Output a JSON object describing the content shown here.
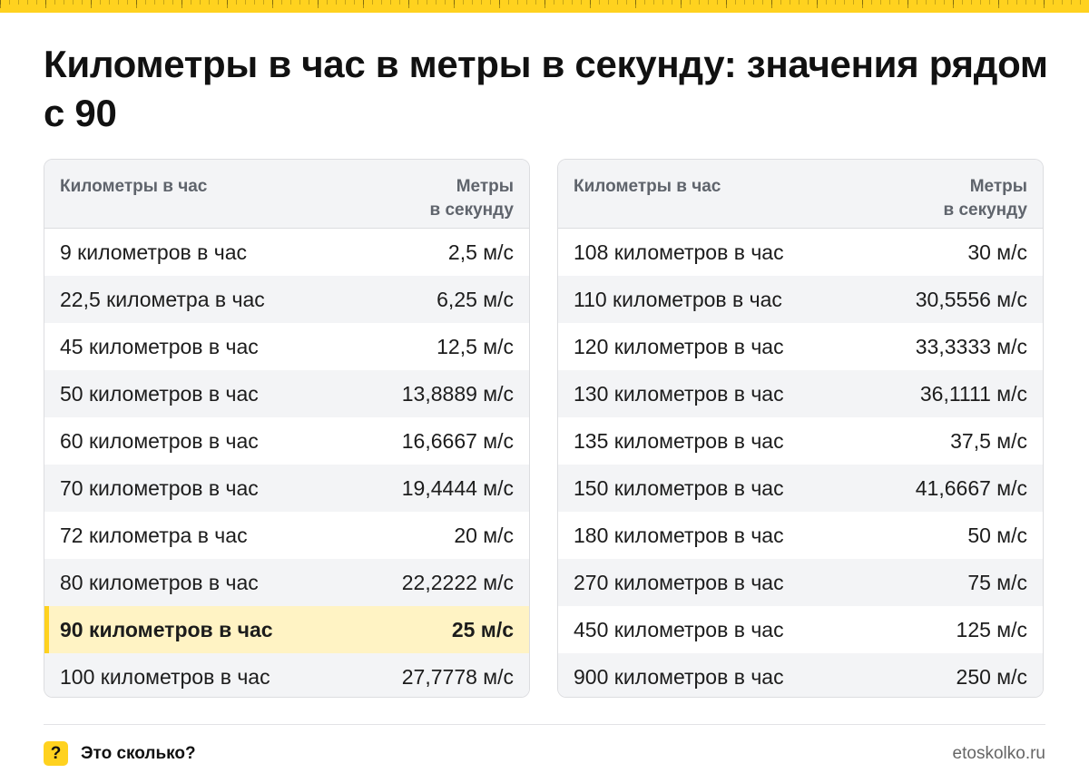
{
  "title": "Километры в час в метры в секунду: значения рядом с 90",
  "accent_color": "#ffd21f",
  "header": {
    "col1": "Километры в час",
    "col2_line1": "Метры",
    "col2_line2": "в секунду"
  },
  "left_rows": [
    {
      "kmh": "9 километров в час",
      "ms": "2,5 м/с"
    },
    {
      "kmh": "22,5 километра в час",
      "ms": "6,25 м/с"
    },
    {
      "kmh": "45 километров в час",
      "ms": "12,5 м/с"
    },
    {
      "kmh": "50 километров в час",
      "ms": "13,8889 м/с"
    },
    {
      "kmh": "60 километров в час",
      "ms": "16,6667 м/с"
    },
    {
      "kmh": "70 километров в час",
      "ms": "19,4444 м/с"
    },
    {
      "kmh": "72 километра в час",
      "ms": "20 м/с"
    },
    {
      "kmh": "80 километров в час",
      "ms": "22,2222 м/с"
    },
    {
      "kmh": "90 километров в час",
      "ms": "25 м/с"
    },
    {
      "kmh": "100 километров в час",
      "ms": "27,7778 м/с"
    }
  ],
  "right_rows": [
    {
      "kmh": "108 километров в час",
      "ms": "30 м/с"
    },
    {
      "kmh": "110 километров в час",
      "ms": "30,5556 м/с"
    },
    {
      "kmh": "120 километров в час",
      "ms": "33,3333 м/с"
    },
    {
      "kmh": "130 километров в час",
      "ms": "36,1111 м/с"
    },
    {
      "kmh": "135 километров в час",
      "ms": "37,5 м/с"
    },
    {
      "kmh": "150 километров в час",
      "ms": "41,6667 м/с"
    },
    {
      "kmh": "180 километров в час",
      "ms": "50 м/с"
    },
    {
      "kmh": "270 километров в час",
      "ms": "75 м/с"
    },
    {
      "kmh": "450 километров в час",
      "ms": "125 м/с"
    },
    {
      "kmh": "900 километров в час",
      "ms": "250 м/с"
    }
  ],
  "footer": {
    "icon_glyph": "?",
    "brand": "Это сколько?",
    "site": "etoskolko.ru"
  }
}
